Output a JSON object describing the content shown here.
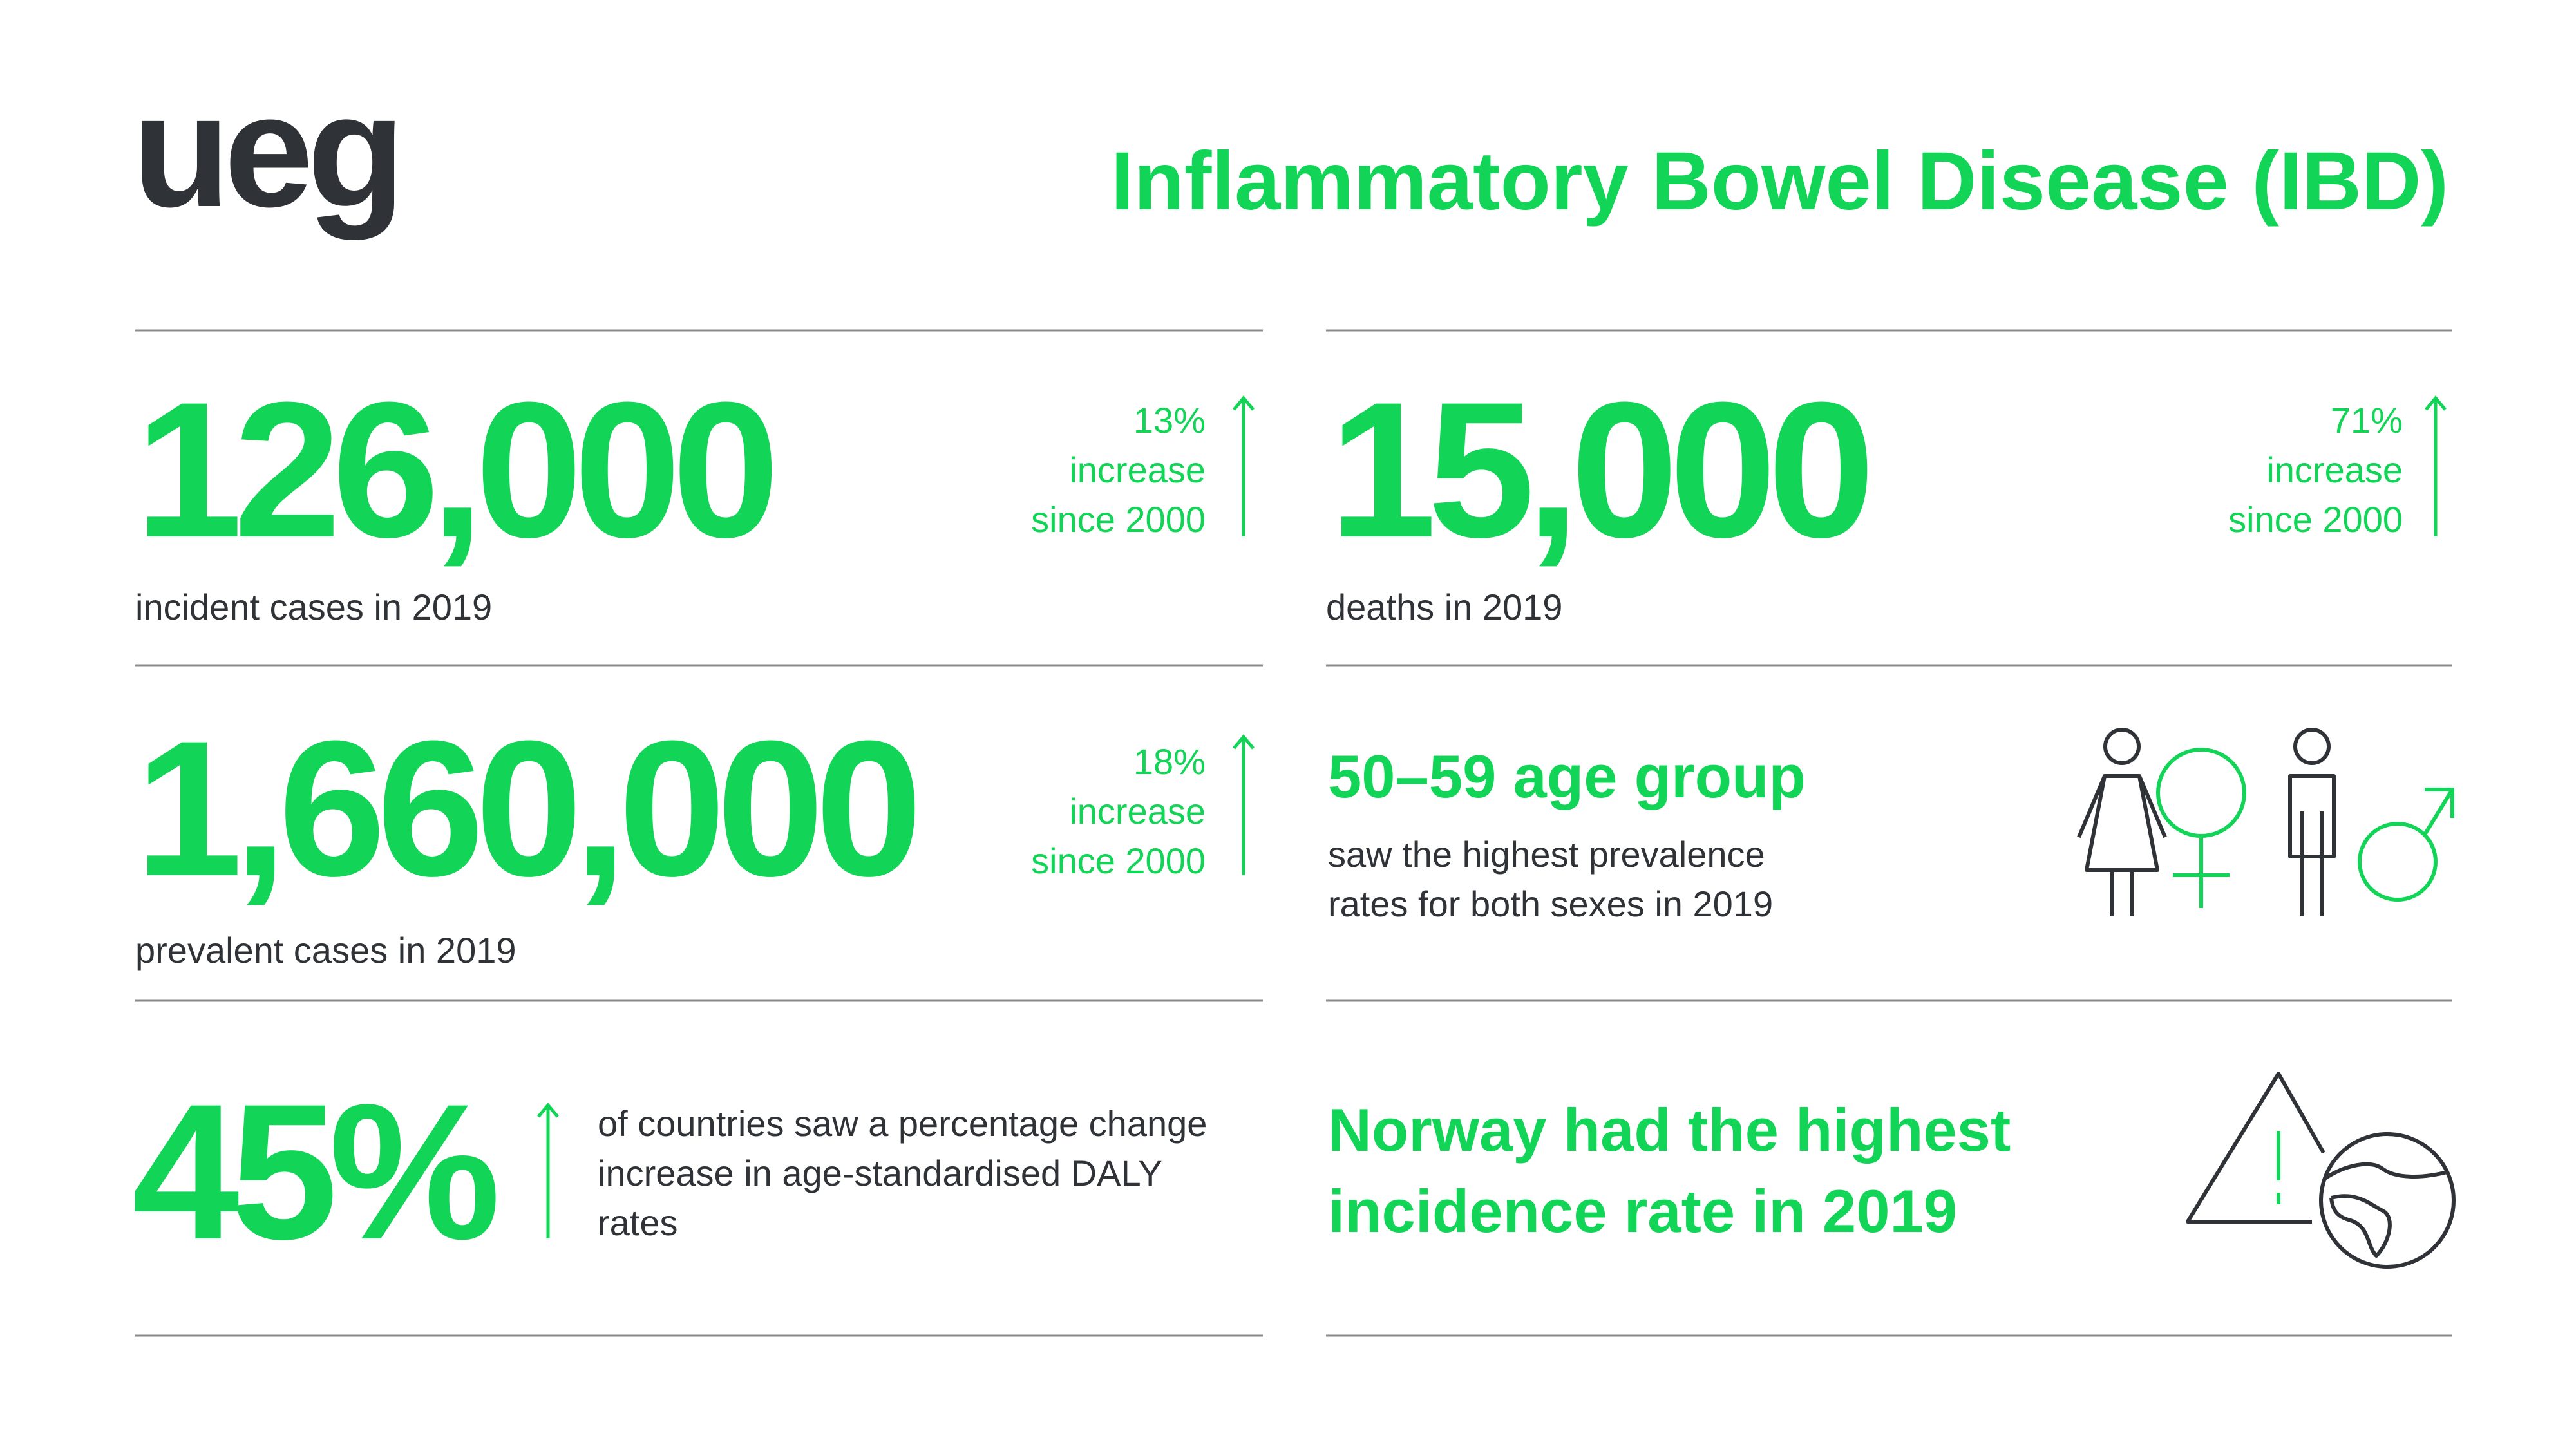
{
  "header": {
    "logo": "ueg",
    "title": "Inflammatory Bowel Disease (IBD)"
  },
  "stats": [
    {
      "value": "126,000",
      "caption": "incident cases in 2019",
      "change": [
        "13%",
        "increase",
        "since 2000"
      ]
    },
    {
      "value": "15,000",
      "caption": "deaths in 2019",
      "change": [
        "71%",
        "increase",
        "since 2000"
      ]
    },
    {
      "value": "1,660,000",
      "caption": "prevalent cases in 2019",
      "change": [
        "18%",
        "increase",
        "since 2000"
      ]
    }
  ],
  "age_group": {
    "title": "50–59 age group",
    "text": [
      "saw the highest prevalence",
      "rates for both sexes in 2019"
    ]
  },
  "daly": {
    "value": "45%",
    "text": [
      "of countries saw a percentage change",
      "increase in age-standardised DALY",
      "rates"
    ]
  },
  "country": {
    "text": [
      "Norway had the highest",
      "incidence rate in 2019"
    ]
  }
}
